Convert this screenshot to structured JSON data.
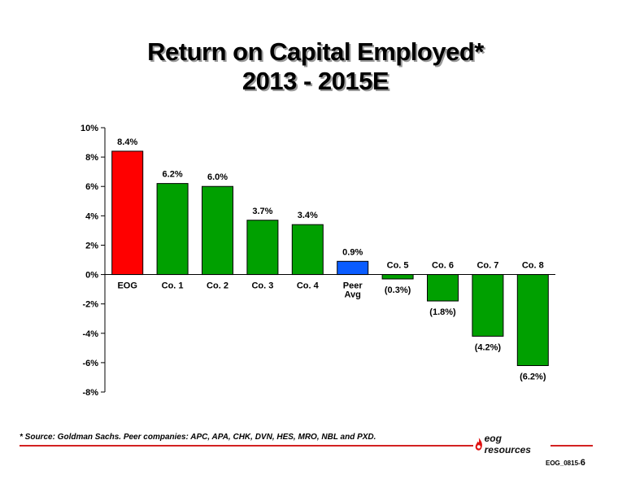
{
  "page": {
    "title_line1": "Return on Capital Employed*",
    "title_line2": "2013 - 2015E",
    "footnote": "* Source: Goldman Sachs. Peer companies: APC, APA, CHK, DVN, HES, MRO, NBL and PXD.",
    "logo_text": "eog resources",
    "page_code": "EOG_0815-",
    "page_number": "6"
  },
  "colors": {
    "eog": "#ff0000",
    "peer_avg": "#0a5cff",
    "company": "#00a000",
    "accent_rule": "#d32222"
  },
  "chart_data": {
    "type": "bar",
    "title": "Return on Capital Employed*",
    "subtitle": "2013 - 2015E",
    "categories": [
      "EOG",
      "Co. 1",
      "Co. 2",
      "Co. 3",
      "Co. 4",
      "Peer Avg",
      "Co. 5",
      "Co. 6",
      "Co. 7",
      "Co. 8"
    ],
    "values": [
      8.4,
      6.2,
      6.0,
      3.7,
      3.4,
      0.9,
      -0.3,
      -1.8,
      -4.2,
      -6.2
    ],
    "data_labels": [
      "8.4%",
      "6.2%",
      "6.0%",
      "3.7%",
      "3.4%",
      "0.9%",
      "(0.3%)",
      "(1.8%)",
      "(4.2%)",
      "(6.2%)"
    ],
    "bar_colors": [
      "eog",
      "company",
      "company",
      "company",
      "company",
      "peer_avg",
      "company",
      "company",
      "company",
      "company"
    ],
    "ylim": [
      -8,
      10
    ],
    "yticks": [
      10,
      8,
      6,
      4,
      2,
      0,
      -2,
      -4,
      -6,
      -8
    ],
    "ytick_labels": [
      "10%",
      "8%",
      "6%",
      "4%",
      "2%",
      "0%",
      "-2%",
      "-4%",
      "-6%",
      "-8%"
    ],
    "xlabel": "",
    "ylabel": "",
    "grid": false,
    "legend": "none"
  }
}
